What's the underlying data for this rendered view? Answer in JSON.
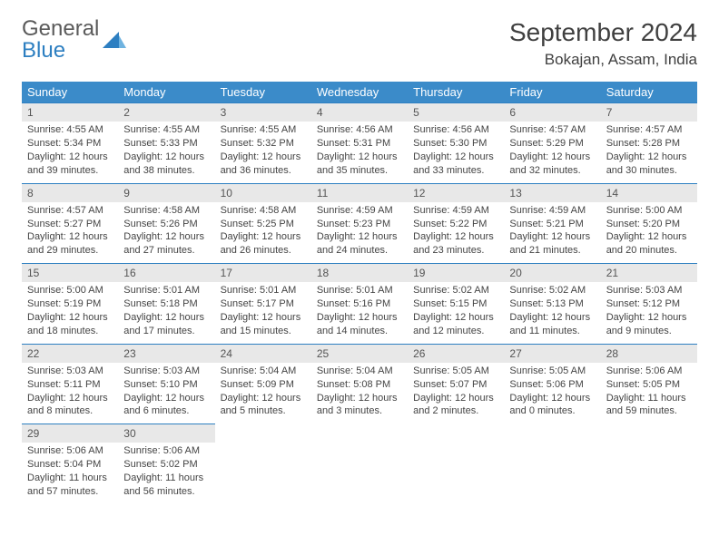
{
  "brand": {
    "part1": "General",
    "part2": "Blue"
  },
  "title": "September 2024",
  "location": "Bokajan, Assam, India",
  "colors": {
    "header_bg": "#3b8bc9",
    "header_text": "#ffffff",
    "cell_border": "#2d7fc1",
    "daynum_bg": "#e8e8e8",
    "text": "#444444"
  },
  "day_names": [
    "Sunday",
    "Monday",
    "Tuesday",
    "Wednesday",
    "Thursday",
    "Friday",
    "Saturday"
  ],
  "weeks": [
    [
      {
        "n": "1",
        "sr": "Sunrise: 4:55 AM",
        "ss": "Sunset: 5:34 PM",
        "dl": "Daylight: 12 hours and 39 minutes."
      },
      {
        "n": "2",
        "sr": "Sunrise: 4:55 AM",
        "ss": "Sunset: 5:33 PM",
        "dl": "Daylight: 12 hours and 38 minutes."
      },
      {
        "n": "3",
        "sr": "Sunrise: 4:55 AM",
        "ss": "Sunset: 5:32 PM",
        "dl": "Daylight: 12 hours and 36 minutes."
      },
      {
        "n": "4",
        "sr": "Sunrise: 4:56 AM",
        "ss": "Sunset: 5:31 PM",
        "dl": "Daylight: 12 hours and 35 minutes."
      },
      {
        "n": "5",
        "sr": "Sunrise: 4:56 AM",
        "ss": "Sunset: 5:30 PM",
        "dl": "Daylight: 12 hours and 33 minutes."
      },
      {
        "n": "6",
        "sr": "Sunrise: 4:57 AM",
        "ss": "Sunset: 5:29 PM",
        "dl": "Daylight: 12 hours and 32 minutes."
      },
      {
        "n": "7",
        "sr": "Sunrise: 4:57 AM",
        "ss": "Sunset: 5:28 PM",
        "dl": "Daylight: 12 hours and 30 minutes."
      }
    ],
    [
      {
        "n": "8",
        "sr": "Sunrise: 4:57 AM",
        "ss": "Sunset: 5:27 PM",
        "dl": "Daylight: 12 hours and 29 minutes."
      },
      {
        "n": "9",
        "sr": "Sunrise: 4:58 AM",
        "ss": "Sunset: 5:26 PM",
        "dl": "Daylight: 12 hours and 27 minutes."
      },
      {
        "n": "10",
        "sr": "Sunrise: 4:58 AM",
        "ss": "Sunset: 5:25 PM",
        "dl": "Daylight: 12 hours and 26 minutes."
      },
      {
        "n": "11",
        "sr": "Sunrise: 4:59 AM",
        "ss": "Sunset: 5:23 PM",
        "dl": "Daylight: 12 hours and 24 minutes."
      },
      {
        "n": "12",
        "sr": "Sunrise: 4:59 AM",
        "ss": "Sunset: 5:22 PM",
        "dl": "Daylight: 12 hours and 23 minutes."
      },
      {
        "n": "13",
        "sr": "Sunrise: 4:59 AM",
        "ss": "Sunset: 5:21 PM",
        "dl": "Daylight: 12 hours and 21 minutes."
      },
      {
        "n": "14",
        "sr": "Sunrise: 5:00 AM",
        "ss": "Sunset: 5:20 PM",
        "dl": "Daylight: 12 hours and 20 minutes."
      }
    ],
    [
      {
        "n": "15",
        "sr": "Sunrise: 5:00 AM",
        "ss": "Sunset: 5:19 PM",
        "dl": "Daylight: 12 hours and 18 minutes."
      },
      {
        "n": "16",
        "sr": "Sunrise: 5:01 AM",
        "ss": "Sunset: 5:18 PM",
        "dl": "Daylight: 12 hours and 17 minutes."
      },
      {
        "n": "17",
        "sr": "Sunrise: 5:01 AM",
        "ss": "Sunset: 5:17 PM",
        "dl": "Daylight: 12 hours and 15 minutes."
      },
      {
        "n": "18",
        "sr": "Sunrise: 5:01 AM",
        "ss": "Sunset: 5:16 PM",
        "dl": "Daylight: 12 hours and 14 minutes."
      },
      {
        "n": "19",
        "sr": "Sunrise: 5:02 AM",
        "ss": "Sunset: 5:15 PM",
        "dl": "Daylight: 12 hours and 12 minutes."
      },
      {
        "n": "20",
        "sr": "Sunrise: 5:02 AM",
        "ss": "Sunset: 5:13 PM",
        "dl": "Daylight: 12 hours and 11 minutes."
      },
      {
        "n": "21",
        "sr": "Sunrise: 5:03 AM",
        "ss": "Sunset: 5:12 PM",
        "dl": "Daylight: 12 hours and 9 minutes."
      }
    ],
    [
      {
        "n": "22",
        "sr": "Sunrise: 5:03 AM",
        "ss": "Sunset: 5:11 PM",
        "dl": "Daylight: 12 hours and 8 minutes."
      },
      {
        "n": "23",
        "sr": "Sunrise: 5:03 AM",
        "ss": "Sunset: 5:10 PM",
        "dl": "Daylight: 12 hours and 6 minutes."
      },
      {
        "n": "24",
        "sr": "Sunrise: 5:04 AM",
        "ss": "Sunset: 5:09 PM",
        "dl": "Daylight: 12 hours and 5 minutes."
      },
      {
        "n": "25",
        "sr": "Sunrise: 5:04 AM",
        "ss": "Sunset: 5:08 PM",
        "dl": "Daylight: 12 hours and 3 minutes."
      },
      {
        "n": "26",
        "sr": "Sunrise: 5:05 AM",
        "ss": "Sunset: 5:07 PM",
        "dl": "Daylight: 12 hours and 2 minutes."
      },
      {
        "n": "27",
        "sr": "Sunrise: 5:05 AM",
        "ss": "Sunset: 5:06 PM",
        "dl": "Daylight: 12 hours and 0 minutes."
      },
      {
        "n": "28",
        "sr": "Sunrise: 5:06 AM",
        "ss": "Sunset: 5:05 PM",
        "dl": "Daylight: 11 hours and 59 minutes."
      }
    ],
    [
      {
        "n": "29",
        "sr": "Sunrise: 5:06 AM",
        "ss": "Sunset: 5:04 PM",
        "dl": "Daylight: 11 hours and 57 minutes."
      },
      {
        "n": "30",
        "sr": "Sunrise: 5:06 AM",
        "ss": "Sunset: 5:02 PM",
        "dl": "Daylight: 11 hours and 56 minutes."
      },
      null,
      null,
      null,
      null,
      null
    ]
  ]
}
